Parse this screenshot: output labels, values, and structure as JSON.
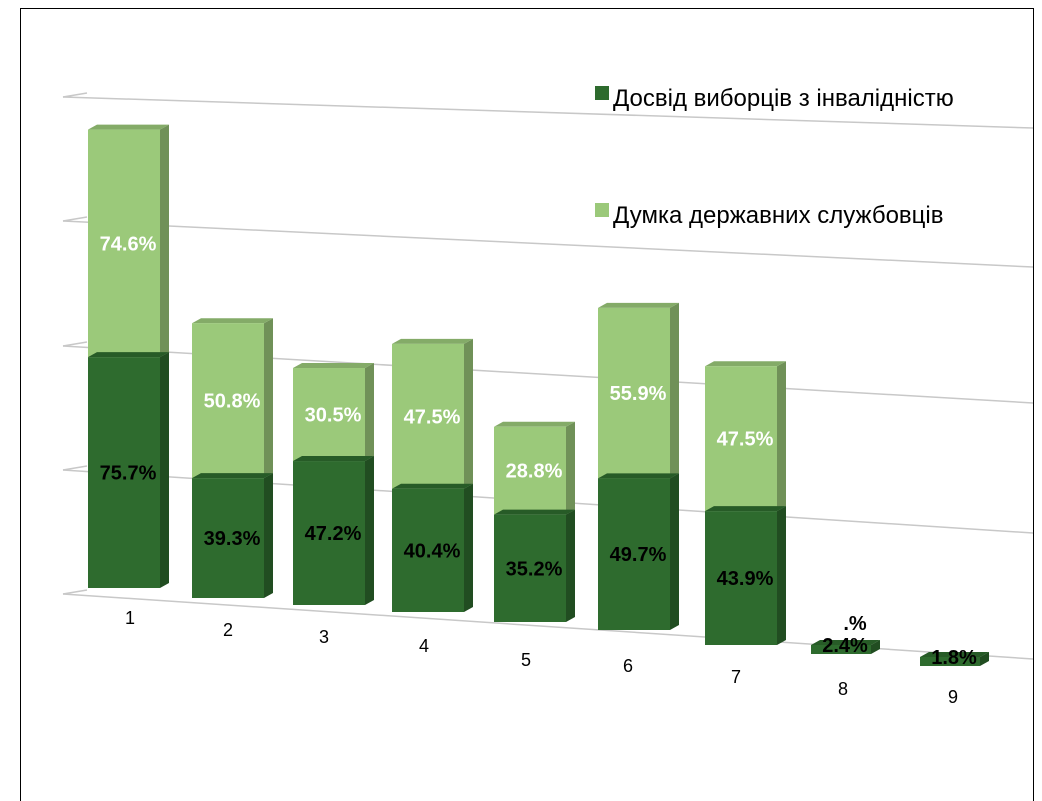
{
  "chart_data": {
    "type": "bar",
    "stacked": true,
    "three_d": true,
    "categories": [
      "1",
      "2",
      "3",
      "4",
      "5",
      "6",
      "7",
      "8",
      "9"
    ],
    "series": [
      {
        "name": "Досвід виборців з інвалідністю",
        "color": "#2e6b2e",
        "values": [
          75.7,
          39.3,
          47.2,
          40.4,
          35.2,
          49.7,
          43.9,
          2.4,
          1.8
        ],
        "labels": [
          "75.7%",
          "39.3%",
          "47.2%",
          "40.4%",
          "35.2%",
          "49.7%",
          "43.9%",
          "2.4%",
          "1.8%"
        ]
      },
      {
        "name": "Думка державних службовців",
        "color": "#9bc97a",
        "values": [
          74.6,
          50.8,
          30.5,
          47.5,
          28.8,
          55.9,
          47.5,
          null,
          null
        ],
        "labels": [
          "74.6%",
          "50.8%",
          "30.5%",
          "47.5%",
          "28.8%",
          "55.9%",
          "47.5%",
          ".%",
          ""
        ]
      }
    ],
    "legend_position": "top-right",
    "grid": true
  }
}
